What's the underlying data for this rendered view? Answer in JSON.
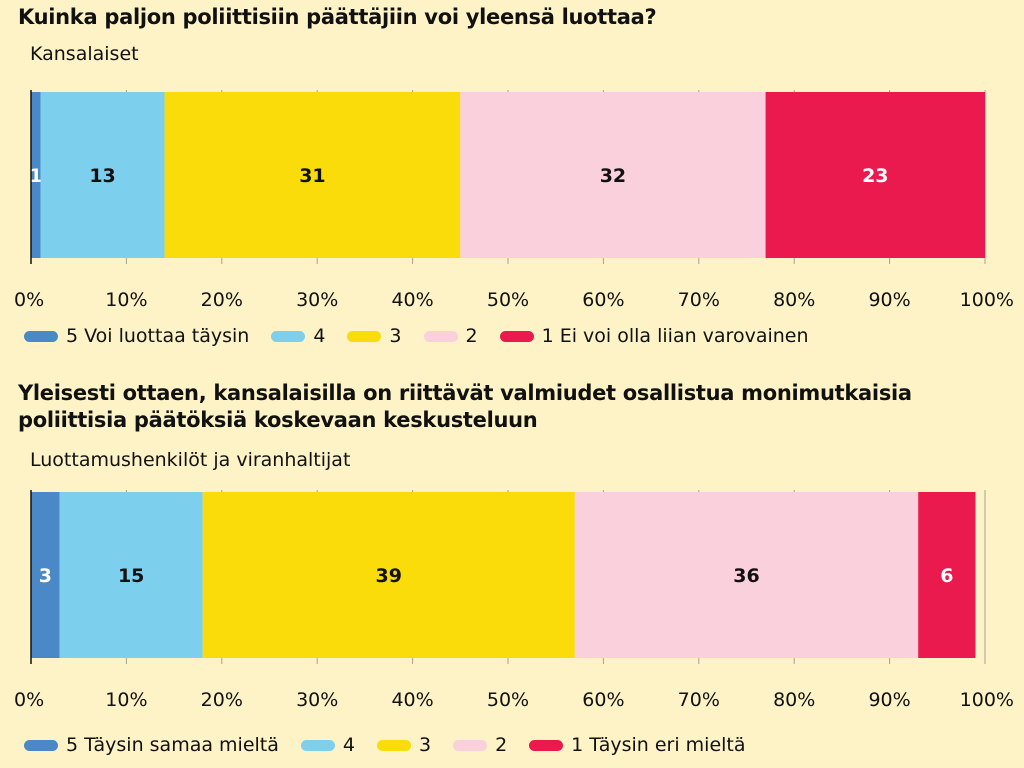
{
  "chart_data": [
    {
      "type": "bar",
      "orientation": "horizontal",
      "stacked": true,
      "title": "Kuinka paljon poliittisiin päättäjiin voi yleensä luottaa?",
      "categories": [
        "Kansalaiset"
      ],
      "series": [
        {
          "name": "5 Voi luottaa täysin",
          "values": [
            1
          ],
          "color": "#4a88c7",
          "label_color": "#ffffff"
        },
        {
          "name": "4",
          "values": [
            13
          ],
          "color": "#7dcfee",
          "label_color": "#111111"
        },
        {
          "name": "3",
          "values": [
            31
          ],
          "color": "#f9dc0a",
          "label_color": "#111111"
        },
        {
          "name": "2",
          "values": [
            32
          ],
          "color": "#f9d0dc",
          "label_color": "#111111"
        },
        {
          "name": "1 Ei voi olla liian varovainen",
          "values": [
            23
          ],
          "color": "#ea1a4f",
          "label_color": "#ffffff"
        }
      ],
      "xlim": [
        0,
        100
      ],
      "x_ticks": [
        "0%",
        "10%",
        "20%",
        "30%",
        "40%",
        "50%",
        "60%",
        "70%",
        "80%",
        "90%",
        "100%"
      ],
      "legend": "bottom"
    },
    {
      "type": "bar",
      "orientation": "horizontal",
      "stacked": true,
      "title": "Yleisesti ottaen, kansalaisilla on riittävät valmiudet osallistua monimutkaisia poliittisia päätöksiä koskevaan keskusteluun",
      "categories": [
        "Luottamushenkilöt ja viranhaltijat"
      ],
      "series": [
        {
          "name": "5 Täysin samaa mieltä",
          "values": [
            3
          ],
          "color": "#4a88c7",
          "label_color": "#ffffff"
        },
        {
          "name": "4",
          "values": [
            15
          ],
          "color": "#7dcfee",
          "label_color": "#111111"
        },
        {
          "name": "3",
          "values": [
            39
          ],
          "color": "#f9dc0a",
          "label_color": "#111111"
        },
        {
          "name": "2",
          "values": [
            36
          ],
          "color": "#f9d0dc",
          "label_color": "#111111"
        },
        {
          "name": "1 Täysin eri mieltä",
          "values": [
            6
          ],
          "color": "#ea1a4f",
          "label_color": "#ffffff"
        }
      ],
      "xlim": [
        0,
        100
      ],
      "x_ticks": [
        "0%",
        "10%",
        "20%",
        "30%",
        "40%",
        "50%",
        "60%",
        "70%",
        "80%",
        "90%",
        "100%"
      ],
      "legend": "bottom"
    }
  ]
}
